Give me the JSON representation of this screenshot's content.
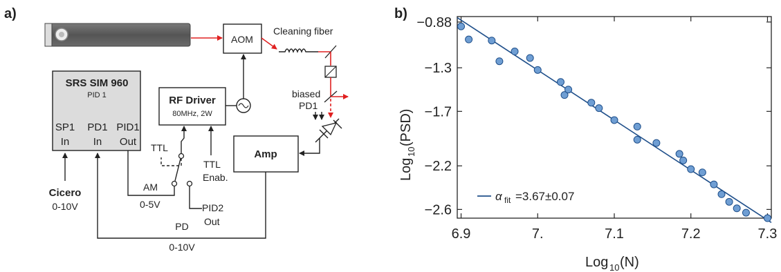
{
  "panel_a": {
    "label": "a)",
    "aom": "AOM",
    "cleaning_fiber": "Cleaning fiber",
    "srs_title": "SRS SIM 960",
    "srs_subtitle": "PID 1",
    "sp1_top": "SP1",
    "sp1_bottom": "In",
    "pd1_top": "PD1",
    "pd1_bottom": "In",
    "pid1_top": "PID1",
    "pid1_bottom": "Out",
    "rf_title": "RF Driver",
    "rf_sub": "80MHz, 2W",
    "biased_top": "biased",
    "biased_bottom": "PD1",
    "amp": "Amp",
    "ttl_left": "TTL",
    "ttl_right_top": "TTL",
    "ttl_right_bottom": "Enab.",
    "am": "AM",
    "am_range": "0-5V",
    "pid2_top": "PID2",
    "pid2_bottom": "Out",
    "cicero": "Cicero",
    "cicero_range": "0-10V",
    "pd": "PD",
    "pd_range": "0-10V"
  },
  "panel_b": {
    "label": "b)",
    "legend_alpha": "α",
    "legend_sub": "fit",
    "legend_value": "=3.67±0.07"
  },
  "chart_data": {
    "type": "scatter",
    "xlabel_main": "Log",
    "xlabel_sub": "10",
    "xlabel_tail": "(N)",
    "ylabel_main": "Log",
    "ylabel_sub": "10",
    "ylabel_tail": "(PSD)",
    "xlim": [
      6.895,
      7.305
    ],
    "ylim": [
      -2.68,
      -0.83
    ],
    "xticks": [
      6.9,
      7.0,
      7.1,
      7.2,
      7.3
    ],
    "xtick_labels": [
      "6.9",
      "7.",
      "7.1",
      "7.2",
      "7.3"
    ],
    "yticks": [
      -0.88,
      -1.3,
      -1.7,
      -2.2,
      -2.6
    ],
    "ytick_labels": [
      "-0.88",
      "-1.3",
      "-1.7",
      "-2.2",
      "-2.6"
    ],
    "points": [
      [
        6.9,
        -0.92
      ],
      [
        6.91,
        -1.04
      ],
      [
        6.94,
        -1.05
      ],
      [
        6.95,
        -1.24
      ],
      [
        6.97,
        -1.15
      ],
      [
        6.99,
        -1.21
      ],
      [
        7.0,
        -1.32
      ],
      [
        7.03,
        -1.43
      ],
      [
        7.035,
        -1.55
      ],
      [
        7.04,
        -1.5
      ],
      [
        7.07,
        -1.62
      ],
      [
        7.08,
        -1.67
      ],
      [
        7.1,
        -1.78
      ],
      [
        7.13,
        -1.84
      ],
      [
        7.13,
        -1.96
      ],
      [
        7.155,
        -1.99
      ],
      [
        7.185,
        -2.09
      ],
      [
        7.19,
        -2.15
      ],
      [
        7.2,
        -2.23
      ],
      [
        7.215,
        -2.26
      ],
      [
        7.23,
        -2.37
      ],
      [
        7.24,
        -2.46
      ],
      [
        7.25,
        -2.53
      ],
      [
        7.26,
        -2.59
      ],
      [
        7.272,
        -2.63
      ],
      [
        7.3,
        -2.72
      ]
    ],
    "fit": {
      "x": [
        6.895,
        7.305
      ],
      "y": [
        -0.84,
        -2.72
      ]
    },
    "grid": false,
    "legend_position": "bottom-left"
  }
}
